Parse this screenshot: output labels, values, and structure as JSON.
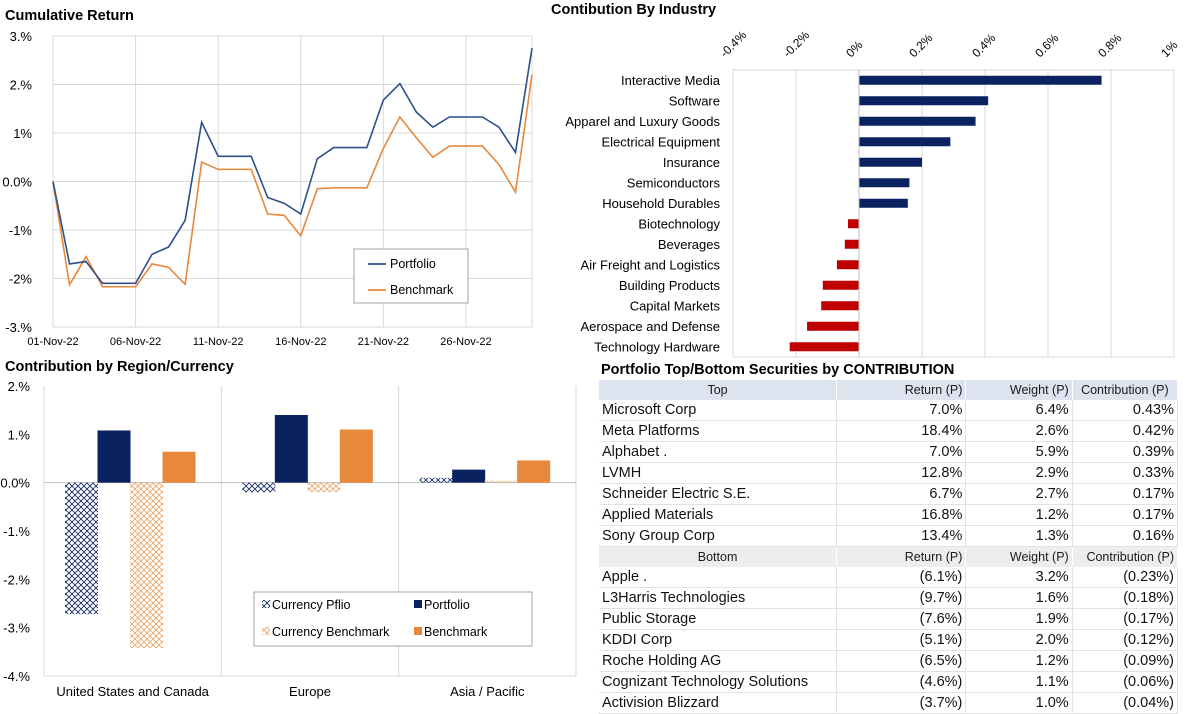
{
  "colors": {
    "navy": "#0a2260",
    "orange": "#e8883a",
    "red": "#c00000",
    "line_blue": "#2f4f8a",
    "grid": "#d9d9d9"
  },
  "cumulative": {
    "title": "Cumulative Return",
    "chart_data": {
      "type": "line",
      "title": "Cumulative Return",
      "ylim": [
        -3,
        3
      ],
      "yticks": [
        "-3.%",
        "-2%",
        "-1%",
        "0.0%",
        "1%",
        "2.%",
        "3.%"
      ],
      "ytick_values": [
        -3,
        -2,
        -1,
        0,
        1,
        2,
        3
      ],
      "xticks": [
        "01-Nov-22",
        "06-Nov-22",
        "11-Nov-22",
        "16-Nov-22",
        "21-Nov-22",
        "26-Nov-22"
      ],
      "xtick_index": [
        0,
        5,
        10,
        15,
        20,
        25
      ],
      "x_count": 30,
      "legend_position": "center-right",
      "series": [
        {
          "name": "Portfolio",
          "color": "#2f4f8a",
          "values": [
            0.0,
            -1.7,
            -1.65,
            -2.1,
            -2.1,
            -2.1,
            -1.5,
            -1.35,
            -0.8,
            1.22,
            0.52,
            0.52,
            0.52,
            -0.33,
            -0.45,
            -0.67,
            0.47,
            0.7,
            0.7,
            0.7,
            1.68,
            2.02,
            1.43,
            1.12,
            1.33,
            1.33,
            1.33,
            1.12,
            0.6,
            2.75
          ]
        },
        {
          "name": "Benchmark",
          "color": "#e8883a",
          "values": [
            0.0,
            -2.13,
            -1.55,
            -2.17,
            -2.17,
            -2.17,
            -1.7,
            -1.77,
            -2.12,
            0.4,
            0.25,
            0.25,
            0.25,
            -0.67,
            -0.7,
            -1.12,
            -0.15,
            -0.13,
            -0.13,
            -0.13,
            0.68,
            1.33,
            0.9,
            0.5,
            0.73,
            0.73,
            0.73,
            0.35,
            -0.22,
            2.2
          ]
        }
      ]
    }
  },
  "industry": {
    "title": "Contibution By Industry",
    "chart_data": {
      "type": "bar",
      "orientation": "horizontal",
      "title": "Contibution By Industry",
      "xlim": [
        -0.4,
        1.0
      ],
      "xticks": [
        "-0.4%",
        "-0.2%",
        "0%",
        "0.2%",
        "0.4%",
        "0.6%",
        "0.8%",
        "1%"
      ],
      "xtick_values": [
        -0.4,
        -0.2,
        0,
        0.2,
        0.4,
        0.6,
        0.8,
        1.0
      ],
      "categories": [
        "Interactive Media",
        "Software",
        "Apparel and Luxury Goods",
        "Electrical Equipment",
        "Insurance",
        "Semiconductors",
        "Household Durables",
        "Biotechnology",
        "Beverages",
        "Air Freight and Logistics",
        "Building Products",
        "Capital Markets",
        "Aerospace and Defense",
        "Technology Hardware"
      ],
      "values": [
        0.77,
        0.41,
        0.37,
        0.29,
        0.2,
        0.16,
        0.155,
        -0.035,
        -0.045,
        -0.07,
        -0.115,
        -0.12,
        -0.165,
        -0.22
      ]
    }
  },
  "region": {
    "title": "Contribution by Region/Currency",
    "chart_data": {
      "type": "bar",
      "title": "Contribution by Region/Currency",
      "ylim": [
        -4,
        2
      ],
      "yticks": [
        "-4.%",
        "-3.%",
        "-2.%",
        "-1.%",
        "0.0%",
        "1.%",
        "2.%"
      ],
      "ytick_values": [
        -4,
        -3,
        -2,
        -1,
        0,
        1,
        2
      ],
      "categories": [
        "United States and Canada",
        "Europe",
        "Asia / Pacific"
      ],
      "legend_position": "bottom-right",
      "series": [
        {
          "name": "Currency Pflio",
          "values": [
            -2.72,
            -0.2,
            0.1
          ]
        },
        {
          "name": "Portfolio",
          "values": [
            1.08,
            1.4,
            0.27
          ]
        },
        {
          "name": "Currency Benchmark",
          "values": [
            -3.42,
            -0.2,
            0.04
          ]
        },
        {
          "name": "Benchmark",
          "values": [
            0.64,
            1.1,
            0.46
          ]
        }
      ]
    }
  },
  "securities": {
    "title": "Portfolio Top/Bottom Securities by CONTRIBUTION",
    "top_header": [
      "Top",
      "Return (P)",
      "Weight (P)",
      "Contribution (P)"
    ],
    "top": [
      [
        "Microsoft Corp",
        "7.0%",
        "6.4%",
        "0.43%"
      ],
      [
        "Meta Platforms",
        "18.4%",
        "2.6%",
        "0.42%"
      ],
      [
        "Alphabet .",
        "7.0%",
        "5.9%",
        "0.39%"
      ],
      [
        "LVMH",
        "12.8%",
        "2.9%",
        "0.33%"
      ],
      [
        "Schneider Electric S.E.",
        "6.7%",
        "2.7%",
        "0.17%"
      ],
      [
        "Applied Materials",
        "16.8%",
        "1.2%",
        "0.17%"
      ],
      [
        "Sony Group Corp",
        "13.4%",
        "1.3%",
        "0.16%"
      ]
    ],
    "bottom_header": [
      "Bottom",
      "Return (P)",
      "Weight (P)",
      "Contribution (P)"
    ],
    "bottom": [
      [
        "Apple .",
        "(6.1%)",
        "3.2%",
        "(0.23%)"
      ],
      [
        "L3Harris Technologies",
        "(9.7%)",
        "1.6%",
        "(0.18%)"
      ],
      [
        "Public Storage",
        "(7.6%)",
        "1.9%",
        "(0.17%)"
      ],
      [
        "KDDI Corp",
        "(5.1%)",
        "2.0%",
        "(0.12%)"
      ],
      [
        "Roche Holding AG",
        "(6.5%)",
        "1.2%",
        "(0.09%)"
      ],
      [
        "Cognizant Technology Solutions",
        "(4.6%)",
        "1.1%",
        "(0.06%)"
      ],
      [
        "Activision Blizzard",
        "(3.7%)",
        "1.0%",
        "(0.04%)"
      ]
    ]
  }
}
